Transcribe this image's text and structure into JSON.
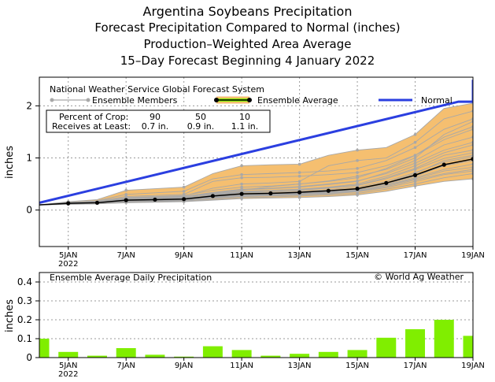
{
  "titles": {
    "line1": "Argentina Soybeans Precipitation",
    "line2": "Forecast Precipitation Compared to Normal (inches)",
    "line3": "Production–Weighted Area Average",
    "line4": "15–Day Forecast Beginning 4 January 2022"
  },
  "top_legend": {
    "model": "National Weather Service Global Forecast System",
    "members_label": "Ensemble Members",
    "average_label": "Ensemble Average",
    "normal_label": "Normal",
    "pct_header": "Percent of Crop:",
    "pct_values": [
      "90",
      "50",
      "10"
    ],
    "recv_header": "Receives at Least:",
    "recv_values": [
      "0.7 in.",
      "0.9 in.",
      "1.1 in."
    ]
  },
  "bottom_legend": {
    "title": "Ensemble Average Daily Precipitation",
    "credit": "© World Ag Weather"
  },
  "colors": {
    "normal": "#2b3fe0",
    "band": "#f5bf70",
    "average": "#000000",
    "members": "#a8a8a8",
    "bars": "#80ee00",
    "grid": "#9a9a9a"
  },
  "chart_data": [
    {
      "type": "line",
      "ylabel": "inches",
      "xlim": [
        4,
        19
      ],
      "ylim": [
        -0.7,
        2.55
      ],
      "yticks": [
        0,
        1,
        2
      ],
      "x_ticks": [
        {
          "x": 5,
          "label": "5JAN",
          "sub": "2022"
        },
        {
          "x": 7,
          "label": "7JAN",
          "sub": ""
        },
        {
          "x": 9,
          "label": "9JAN",
          "sub": ""
        },
        {
          "x": 11,
          "label": "11JAN",
          "sub": ""
        },
        {
          "x": 13,
          "label": "13JAN",
          "sub": ""
        },
        {
          "x": 15,
          "label": "15JAN",
          "sub": ""
        },
        {
          "x": 17,
          "label": "17JAN",
          "sub": ""
        },
        {
          "x": 19,
          "label": "19JAN",
          "sub": ""
        }
      ],
      "x": [
        4,
        5,
        6,
        7,
        8,
        9,
        10,
        11,
        12,
        13,
        14,
        15,
        16,
        17,
        18,
        19
      ],
      "normal": {
        "x": [
          4,
          18.5,
          19,
          19
        ],
        "y": [
          0.14,
          2.08,
          2.08,
          2.5
        ]
      },
      "ensemble_average": [
        0.1,
        0.13,
        0.14,
        0.19,
        0.2,
        0.21,
        0.27,
        0.31,
        0.32,
        0.34,
        0.37,
        0.41,
        0.52,
        0.67,
        0.87,
        0.98
      ],
      "ensemble_members": [
        [
          0.1,
          0.12,
          0.13,
          0.17,
          0.18,
          0.19,
          0.23,
          0.27,
          0.28,
          0.3,
          0.32,
          0.36,
          0.45,
          0.58,
          0.7,
          0.78
        ],
        [
          0.1,
          0.13,
          0.14,
          0.2,
          0.21,
          0.22,
          0.3,
          0.35,
          0.36,
          0.38,
          0.42,
          0.47,
          0.6,
          0.78,
          0.99,
          1.1
        ],
        [
          0.1,
          0.12,
          0.14,
          0.18,
          0.2,
          0.21,
          0.26,
          0.3,
          0.31,
          0.33,
          0.36,
          0.4,
          0.5,
          0.65,
          0.85,
          0.95
        ],
        [
          0.1,
          0.14,
          0.15,
          0.22,
          0.24,
          0.26,
          0.34,
          0.4,
          0.42,
          0.45,
          0.5,
          0.56,
          0.7,
          0.9,
          1.15,
          1.3
        ],
        [
          0.1,
          0.11,
          0.12,
          0.14,
          0.15,
          0.16,
          0.19,
          0.22,
          0.23,
          0.24,
          0.26,
          0.29,
          0.36,
          0.46,
          0.55,
          0.6
        ],
        [
          0.1,
          0.13,
          0.15,
          0.21,
          0.23,
          0.25,
          0.33,
          0.39,
          0.41,
          0.44,
          0.49,
          0.55,
          0.72,
          0.95,
          1.25,
          1.4
        ],
        [
          0.1,
          0.12,
          0.13,
          0.16,
          0.17,
          0.18,
          0.22,
          0.26,
          0.27,
          0.29,
          0.31,
          0.35,
          0.43,
          0.55,
          0.68,
          0.75
        ],
        [
          0.1,
          0.14,
          0.16,
          0.24,
          0.26,
          0.28,
          0.38,
          0.44,
          0.46,
          0.5,
          0.55,
          0.62,
          0.8,
          1.05,
          1.4,
          1.6
        ],
        [
          0.1,
          0.13,
          0.14,
          0.19,
          0.2,
          0.21,
          0.28,
          0.33,
          0.34,
          0.36,
          0.39,
          0.44,
          0.55,
          0.72,
          0.92,
          1.02
        ],
        [
          0.1,
          0.12,
          0.13,
          0.17,
          0.19,
          0.2,
          0.24,
          0.28,
          0.29,
          0.31,
          0.34,
          0.38,
          0.48,
          0.62,
          0.78,
          0.88
        ],
        [
          0.1,
          0.15,
          0.18,
          0.3,
          0.33,
          0.36,
          0.6,
          0.68,
          0.7,
          0.72,
          0.75,
          0.8,
          0.95,
          1.2,
          1.55,
          1.75
        ],
        [
          0.1,
          0.14,
          0.17,
          0.26,
          0.28,
          0.3,
          0.55,
          0.62,
          0.63,
          0.65,
          0.68,
          0.72,
          0.85,
          1.05,
          1.35,
          1.55
        ],
        [
          0.1,
          0.16,
          0.2,
          0.38,
          0.41,
          0.44,
          0.7,
          0.85,
          0.87,
          0.88,
          1.05,
          1.15,
          1.2,
          1.45,
          1.95,
          2.05
        ],
        [
          0.1,
          0.13,
          0.15,
          0.23,
          0.25,
          0.27,
          0.42,
          0.5,
          0.52,
          0.55,
          0.85,
          0.95,
          1.0,
          1.3,
          1.75,
          1.9
        ],
        [
          0.1,
          0.12,
          0.14,
          0.2,
          0.22,
          0.24,
          0.32,
          0.38,
          0.45,
          0.5,
          0.56,
          0.65,
          0.78,
          1.0,
          1.45,
          1.7
        ],
        [
          0.1,
          0.11,
          0.12,
          0.15,
          0.16,
          0.17,
          0.2,
          0.24,
          0.25,
          0.27,
          0.29,
          0.32,
          0.4,
          0.5,
          0.62,
          0.7
        ],
        [
          0.1,
          0.13,
          0.14,
          0.18,
          0.19,
          0.2,
          0.25,
          0.29,
          0.3,
          0.32,
          0.35,
          0.39,
          0.52,
          0.7,
          0.95,
          1.05
        ],
        [
          0.1,
          0.12,
          0.13,
          0.16,
          0.18,
          0.19,
          0.23,
          0.27,
          0.29,
          0.31,
          0.33,
          0.37,
          0.47,
          0.6,
          0.75,
          0.82
        ],
        [
          0.1,
          0.14,
          0.16,
          0.22,
          0.23,
          0.25,
          0.31,
          0.36,
          0.38,
          0.4,
          0.44,
          0.5,
          0.65,
          0.85,
          1.1,
          1.25
        ],
        [
          0.1,
          0.13,
          0.14,
          0.19,
          0.21,
          0.23,
          0.29,
          0.34,
          0.36,
          0.39,
          0.43,
          0.48,
          0.62,
          0.8,
          1.05,
          1.15
        ]
      ],
      "band_p10": [
        0.1,
        0.16,
        0.2,
        0.38,
        0.41,
        0.44,
        0.7,
        0.85,
        0.87,
        0.88,
        1.05,
        1.15,
        1.2,
        1.45,
        1.95,
        2.05
      ],
      "band_p90": [
        0.1,
        0.11,
        0.12,
        0.14,
        0.15,
        0.16,
        0.19,
        0.22,
        0.23,
        0.24,
        0.26,
        0.29,
        0.36,
        0.46,
        0.55,
        0.6
      ]
    },
    {
      "type": "bar",
      "title": "Ensemble Average Daily Precipitation",
      "ylabel": "inches",
      "ylim": [
        0,
        0.45
      ],
      "yticks": [
        0,
        0.1,
        0.2,
        0.3,
        0.4
      ],
      "x": [
        4,
        5,
        6,
        7,
        8,
        9,
        10,
        11,
        12,
        13,
        14,
        15,
        16,
        17,
        18,
        19
      ],
      "values": [
        0.1,
        0.03,
        0.01,
        0.05,
        0.015,
        0.005,
        0.06,
        0.04,
        0.01,
        0.02,
        0.03,
        0.04,
        0.105,
        0.15,
        0.2,
        0.115
      ]
    }
  ]
}
